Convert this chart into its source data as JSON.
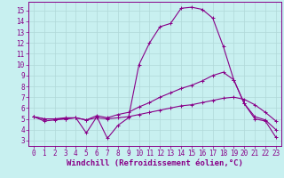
{
  "xlabel": "Windchill (Refroidissement éolien,°C)",
  "bg_color": "#c8f0f0",
  "grid_color": "#b0d8d8",
  "line_color": "#880088",
  "xlim": [
    -0.5,
    23.5
  ],
  "ylim": [
    2.5,
    15.8
  ],
  "xticks": [
    0,
    1,
    2,
    3,
    4,
    5,
    6,
    7,
    8,
    9,
    10,
    11,
    12,
    13,
    14,
    15,
    16,
    17,
    18,
    19,
    20,
    21,
    22,
    23
  ],
  "yticks": [
    3,
    4,
    5,
    6,
    7,
    8,
    9,
    10,
    11,
    12,
    13,
    14,
    15
  ],
  "line1_x": [
    0,
    1,
    2,
    3,
    4,
    5,
    6,
    7,
    8,
    9,
    10,
    11,
    12,
    13,
    14,
    15,
    16,
    17,
    18,
    19,
    20,
    21,
    22,
    23
  ],
  "line1_y": [
    5.2,
    4.8,
    4.9,
    5.0,
    5.1,
    3.7,
    5.2,
    3.2,
    4.4,
    5.1,
    10.0,
    12.0,
    13.5,
    13.8,
    15.2,
    15.3,
    15.1,
    14.3,
    11.7,
    8.6,
    6.4,
    5.0,
    4.8,
    3.3
  ],
  "line2_x": [
    0,
    1,
    2,
    3,
    4,
    5,
    6,
    7,
    8,
    9,
    10,
    11,
    12,
    13,
    14,
    15,
    16,
    17,
    18,
    19,
    20,
    21,
    22,
    23
  ],
  "line2_y": [
    5.2,
    5.0,
    5.0,
    5.1,
    5.1,
    4.9,
    5.3,
    5.1,
    5.4,
    5.6,
    6.1,
    6.5,
    7.0,
    7.4,
    7.8,
    8.1,
    8.5,
    9.0,
    9.3,
    8.6,
    6.4,
    5.2,
    4.9,
    4.0
  ],
  "line3_x": [
    0,
    1,
    2,
    3,
    4,
    5,
    6,
    7,
    8,
    9,
    10,
    11,
    12,
    13,
    14,
    15,
    16,
    17,
    18,
    19,
    20,
    21,
    22,
    23
  ],
  "line3_y": [
    5.2,
    5.0,
    5.0,
    5.0,
    5.1,
    4.9,
    5.1,
    5.0,
    5.1,
    5.2,
    5.4,
    5.6,
    5.8,
    6.0,
    6.2,
    6.3,
    6.5,
    6.7,
    6.9,
    7.0,
    6.8,
    6.3,
    5.6,
    4.8
  ],
  "tick_fontsize": 5.5,
  "xlabel_fontsize": 6.5
}
